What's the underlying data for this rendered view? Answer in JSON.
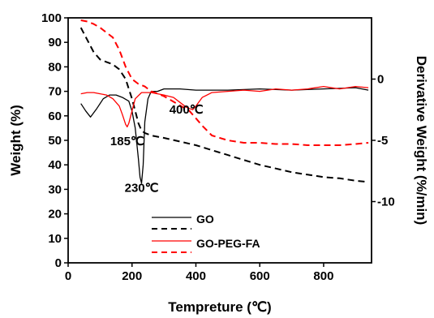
{
  "chart_data": {
    "type": "line",
    "xlabel": "Tempreture (℃)",
    "ylabel_left": "Weight (%)",
    "ylabel_right": "Derivative Weight (%/min)",
    "xlim": [
      0,
      950
    ],
    "ylim_left": [
      0,
      100
    ],
    "ylim_right": [
      -15,
      5
    ],
    "x_ticks": [
      "0",
      "200",
      "400",
      "600",
      "800"
    ],
    "y_ticks_left": [
      "0",
      "10",
      "20",
      "30",
      "40",
      "50",
      "60",
      "70",
      "80",
      "90",
      "100"
    ],
    "y_ticks_right": [
      "0",
      "-5",
      "-10"
    ],
    "annotations": [
      {
        "text": "185℃",
        "x": 185,
        "y": 48
      },
      {
        "text": "230℃",
        "x": 230,
        "y": 29
      },
      {
        "text": "400℃",
        "x": 370,
        "y": 61
      }
    ],
    "legend": [
      {
        "label": "GO",
        "color": "#000000"
      },
      {
        "label": "GO-PEG-FA",
        "color": "#ff0000"
      }
    ],
    "series": [
      {
        "label": "GO",
        "kind": "derivative",
        "axis": "right",
        "color": "#000000",
        "dash": false,
        "x": [
          40,
          55,
          70,
          90,
          110,
          130,
          150,
          170,
          190,
          200,
          210,
          220,
          225,
          230,
          235,
          240,
          250,
          260,
          280,
          300,
          350,
          400,
          450,
          500,
          600,
          700,
          800,
          900,
          940
        ],
        "y": [
          -2.0,
          -2.6,
          -3.1,
          -2.4,
          -1.6,
          -1.3,
          -1.3,
          -1.5,
          -1.8,
          -2.6,
          -4.0,
          -6.5,
          -8.0,
          -8.5,
          -7.0,
          -3.5,
          -1.6,
          -1.0,
          -1.0,
          -0.8,
          -0.8,
          -0.9,
          -0.9,
          -0.9,
          -0.8,
          -0.9,
          -0.8,
          -0.7,
          -0.9
        ]
      },
      {
        "label": "GO",
        "kind": "tga",
        "axis": "left",
        "color": "#000000",
        "dash": true,
        "x": [
          40,
          60,
          80,
          100,
          120,
          140,
          160,
          180,
          200,
          210,
          220,
          230,
          240,
          260,
          300,
          350,
          400,
          450,
          500,
          550,
          600,
          650,
          700,
          750,
          800,
          850,
          900,
          940
        ],
        "y": [
          96,
          91,
          86,
          83,
          82,
          81,
          79,
          75,
          67,
          62,
          57,
          54,
          53,
          52,
          51,
          49.5,
          48,
          46,
          44,
          42,
          40,
          38.5,
          37,
          36,
          35,
          34.5,
          33.5,
          33
        ]
      },
      {
        "label": "GO-PEG-FA",
        "kind": "derivative",
        "axis": "right",
        "color": "#ff0000",
        "dash": false,
        "x": [
          40,
          60,
          80,
          100,
          120,
          140,
          160,
          170,
          180,
          185,
          190,
          200,
          210,
          230,
          260,
          300,
          330,
          350,
          370,
          390,
          400,
          420,
          450,
          500,
          550,
          600,
          650,
          700,
          750,
          800,
          850,
          900,
          940
        ],
        "y": [
          -1.2,
          -1.1,
          -1.1,
          -1.2,
          -1.3,
          -1.6,
          -2.2,
          -2.9,
          -3.7,
          -3.9,
          -3.6,
          -2.6,
          -1.6,
          -1.1,
          -1.1,
          -1.3,
          -1.5,
          -1.9,
          -2.3,
          -2.5,
          -2.2,
          -1.5,
          -1.1,
          -1.0,
          -0.9,
          -1.0,
          -0.8,
          -0.9,
          -0.8,
          -0.6,
          -0.8,
          -0.6,
          -0.7
        ]
      },
      {
        "label": "GO-PEG-FA",
        "kind": "tga",
        "axis": "left",
        "color": "#ff0000",
        "dash": true,
        "x": [
          40,
          60,
          80,
          100,
          120,
          140,
          160,
          180,
          200,
          220,
          240,
          260,
          300,
          340,
          380,
          400,
          420,
          450,
          500,
          550,
          600,
          650,
          700,
          750,
          800,
          850,
          900,
          940
        ],
        "y": [
          99,
          98.5,
          97.5,
          96,
          94,
          92,
          87,
          80,
          75,
          73,
          72,
          70,
          68,
          65,
          62,
          59,
          56,
          52,
          50,
          49,
          49,
          48.5,
          48.5,
          48,
          48,
          48,
          48.5,
          49
        ]
      }
    ]
  }
}
